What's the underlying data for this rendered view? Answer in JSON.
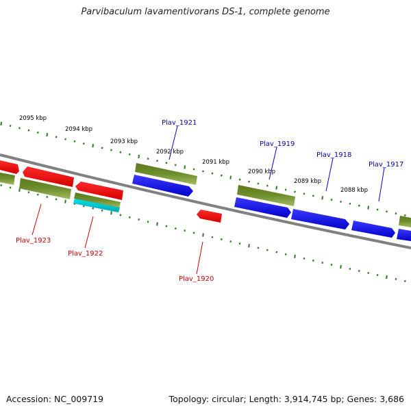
{
  "title": "Parvibaculum lavamentivorans DS-1, complete genome",
  "footer": {
    "accession": "Accession: NC_009719",
    "summary": "Topology: circular; Length: 3,914,745 bp; Genes: 3,686"
  },
  "colors": {
    "backbone": "#808080",
    "tick": "#2a7a1e",
    "forward_gene": "#0000ee",
    "reverse_gene": "#ee0000",
    "cds": "#6b8a2a",
    "rna": "#00cccc"
  },
  "scale_labels": [
    "2095 kbp",
    "2094 kbp",
    "2093 kbp",
    "2092 kbp",
    "2091 kbp",
    "2090 kbp",
    "2089 kbp",
    "2088 kbp"
  ],
  "gene_labels_forward": [
    "Plav_1921",
    "Plav_1919",
    "Plav_1918",
    "Plav_1917"
  ],
  "gene_labels_reverse": [
    "Plav_1923",
    "Plav_1922",
    "Plav_1920"
  ]
}
